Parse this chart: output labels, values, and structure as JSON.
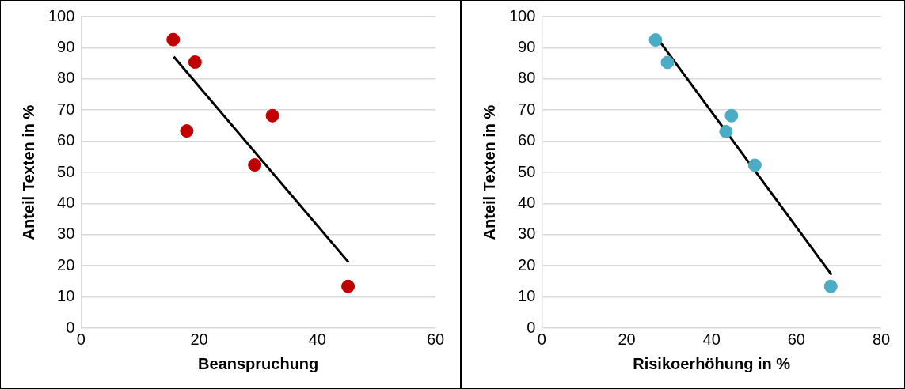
{
  "chart_data": [
    {
      "type": "scatter",
      "xlabel": "Beanspruchung",
      "ylabel": "Anteil Texten in %",
      "xlim": [
        0,
        60
      ],
      "xticks": [
        0,
        20,
        40,
        60
      ],
      "ylim": [
        0,
        100
      ],
      "yticks": [
        0,
        10,
        20,
        30,
        40,
        50,
        60,
        70,
        80,
        90,
        100
      ],
      "grid": "y",
      "marker": "circle",
      "legend": false,
      "series": [
        {
          "color": "#c00000",
          "x": [
            15.6,
            19.3,
            17.9,
            32.4,
            29.4,
            45.2
          ],
          "values": [
            92.6,
            85.4,
            63.3,
            68.2,
            52.4,
            13.4
          ]
        },
        {
          "type": "line",
          "marker": "none",
          "color": "#000000",
          "x": [
            15.7,
            45.3
          ],
          "values": [
            87.1,
            21.1
          ]
        }
      ]
    },
    {
      "type": "scatter",
      "xlabel": "Risikoerhöhung in %",
      "ylabel": "Anteil Texten in %",
      "xlim": [
        0,
        80
      ],
      "xticks": [
        0,
        20,
        40,
        60,
        80
      ],
      "ylim": [
        0,
        100
      ],
      "yticks": [
        0,
        10,
        20,
        30,
        40,
        50,
        60,
        70,
        80,
        90,
        100
      ],
      "grid": "y",
      "marker": "circle",
      "legend": false,
      "series": [
        {
          "color": "#4bacc6",
          "x": [
            26.8,
            29.6,
            43.4,
            44.7,
            50.2,
            68.1
          ],
          "values": [
            92.5,
            85.3,
            63.1,
            68.2,
            52.3,
            13.4
          ]
        },
        {
          "type": "line",
          "marker": "none",
          "color": "#000000",
          "x": [
            26.6,
            68.3
          ],
          "values": [
            94.2,
            17.1
          ]
        }
      ]
    }
  ]
}
